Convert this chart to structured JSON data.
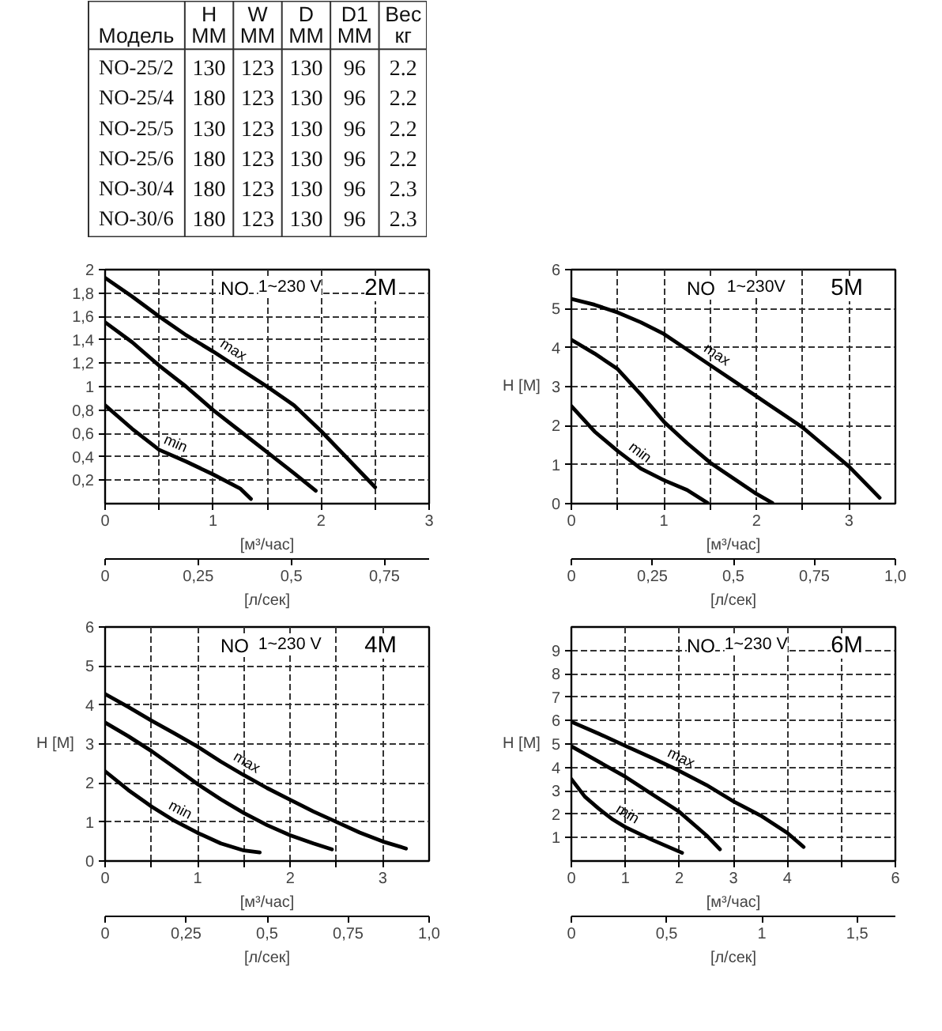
{
  "chart_data": [
    {
      "type": "heatmap",
      "ylabel": "Модель",
      "categories": [
        "H ММ",
        "W ММ",
        "D ММ",
        "D1 ММ",
        "Вес кг"
      ],
      "y_categories": [
        "NO-25/2",
        "NO-25/4",
        "NO-25/5",
        "NO-25/6",
        "NO-30/4",
        "NO-30/6"
      ],
      "cells": [
        [
          130,
          123,
          130,
          96,
          2.2
        ],
        [
          180,
          123,
          130,
          96,
          2.2
        ],
        [
          130,
          123,
          130,
          96,
          2.2
        ],
        [
          180,
          123,
          130,
          96,
          2.2
        ],
        [
          180,
          123,
          130,
          96,
          2.3
        ],
        [
          180,
          123,
          130,
          96,
          2.3
        ]
      ],
      "data_labels": true
    },
    {
      "type": "line",
      "title": "2M",
      "annotations": [
        "NO",
        "1~230 V"
      ],
      "xlabel": "[м³/час]",
      "x2label": "[л/сек]",
      "xlim": [
        0,
        3
      ],
      "xticks": [
        0,
        {
          "value": 0.5,
          "label": null
        },
        1,
        {
          "value": 1.5,
          "label": null
        },
        2,
        {
          "value": 2.5,
          "label": null
        },
        3
      ],
      "x2lim": [
        0,
        0.87
      ],
      "x2ticks": [
        0,
        {
          "value": 0.25,
          "label": "0,25"
        },
        {
          "value": 0.5,
          "label": "0,5"
        },
        {
          "value": 0.75,
          "label": "0,75"
        }
      ],
      "ylim": [
        0,
        2
      ],
      "yticks": [
        {
          "value": 0.2,
          "label": "0,2"
        },
        {
          "value": 0.4,
          "label": "0,4"
        },
        {
          "value": 0.6,
          "label": "0,6"
        },
        {
          "value": 0.8,
          "label": "0,8"
        },
        1,
        {
          "value": 1.2,
          "label": "1,2"
        },
        {
          "value": 1.4,
          "label": "1,4"
        },
        {
          "value": 1.6,
          "label": "1,6"
        },
        {
          "value": 1.8,
          "label": "1,8"
        },
        2
      ],
      "grid": true,
      "series": [
        {
          "name": "max",
          "color": "#000000",
          "x": [
            0,
            0.25,
            0.5,
            0.75,
            1,
            1.25,
            1.5,
            1.75,
            2,
            2.25,
            2.5
          ],
          "values": [
            1.93,
            1.77,
            1.6,
            1.44,
            1.3,
            1.15,
            1.0,
            0.84,
            0.62,
            0.38,
            0.14
          ]
        },
        {
          "color": "#000000",
          "x": [
            0,
            0.25,
            0.5,
            0.75,
            1,
            1.25,
            1.5,
            1.75,
            1.95
          ],
          "values": [
            1.55,
            1.38,
            1.18,
            1.0,
            0.8,
            0.62,
            0.44,
            0.26,
            0.11
          ]
        },
        {
          "name": "min",
          "color": "#000000",
          "x": [
            0,
            0.25,
            0.5,
            0.75,
            1,
            1.25,
            1.35
          ],
          "values": [
            0.84,
            0.64,
            0.46,
            0.36,
            0.25,
            0.13,
            0.04
          ]
        }
      ]
    },
    {
      "type": "line",
      "title": "5M",
      "annotations": [
        "NO",
        "1~230V"
      ],
      "xlabel": "[м³/час]",
      "x2label": "[л/сек]",
      "ylabel": "H [М]",
      "xlim": [
        0,
        3.5
      ],
      "xticks": [
        0,
        {
          "value": 0.5,
          "label": null
        },
        1,
        {
          "value": 1.5,
          "label": null
        },
        2,
        {
          "value": 2.5,
          "label": null
        },
        3
      ],
      "x2lim": [
        0,
        1
      ],
      "x2ticks": [
        0,
        {
          "value": 0.25,
          "label": "0,25"
        },
        {
          "value": 0.5,
          "label": "0,5"
        },
        {
          "value": 0.75,
          "label": "0,75"
        },
        {
          "value": 1,
          "label": "1,0"
        }
      ],
      "ylim": [
        0,
        6
      ],
      "yticks": [
        0,
        1,
        2,
        3,
        4,
        5,
        6
      ],
      "grid": true,
      "series": [
        {
          "name": "max",
          "color": "#000000",
          "x": [
            0,
            0.25,
            0.5,
            0.75,
            1,
            1.25,
            1.5,
            1.75,
            2,
            2.25,
            2.5,
            2.75,
            3,
            3.33
          ],
          "values": [
            5.25,
            5.1,
            4.9,
            4.65,
            4.35,
            3.95,
            3.55,
            3.15,
            2.75,
            2.35,
            1.95,
            1.45,
            0.95,
            0.15
          ]
        },
        {
          "color": "#000000",
          "x": [
            0,
            0.25,
            0.5,
            0.75,
            1,
            1.25,
            1.5,
            1.75,
            2,
            2.17
          ],
          "values": [
            4.2,
            3.85,
            3.45,
            2.8,
            2.1,
            1.55,
            1.05,
            0.65,
            0.25,
            0.02
          ]
        },
        {
          "name": "min",
          "color": "#000000",
          "x": [
            0,
            0.25,
            0.5,
            0.75,
            1,
            1.25,
            1.47
          ],
          "values": [
            2.5,
            1.85,
            1.35,
            0.9,
            0.6,
            0.35,
            0.02
          ]
        }
      ]
    },
    {
      "type": "line",
      "title": "4M",
      "annotations": [
        "NO",
        "1~230 V"
      ],
      "xlabel": "[м³/час]",
      "x2label": "[л/сек]",
      "ylabel": "H [М]",
      "xlim": [
        0,
        3.5
      ],
      "xticks": [
        0,
        {
          "value": 0.5,
          "label": null
        },
        1,
        {
          "value": 1.5,
          "label": null
        },
        2,
        {
          "value": 2.5,
          "label": null
        },
        3
      ],
      "x2lim": [
        0,
        1
      ],
      "x2ticks": [
        0,
        {
          "value": 0.25,
          "label": "0,25"
        },
        {
          "value": 0.5,
          "label": "0,5"
        },
        {
          "value": 0.75,
          "label": "0,75"
        },
        {
          "value": 1,
          "label": "1,0"
        }
      ],
      "ylim": [
        0,
        6
      ],
      "yticks": [
        0,
        1,
        2,
        3,
        4,
        5,
        6
      ],
      "grid": true,
      "series": [
        {
          "name": "max",
          "color": "#000000",
          "x": [
            0,
            0.25,
            0.5,
            0.75,
            1,
            1.25,
            1.5,
            1.75,
            2,
            2.25,
            2.5,
            2.75,
            3,
            3.25
          ],
          "values": [
            4.28,
            3.95,
            3.6,
            3.27,
            2.93,
            2.55,
            2.2,
            1.87,
            1.57,
            1.27,
            1.0,
            0.73,
            0.5,
            0.32
          ]
        },
        {
          "color": "#000000",
          "x": [
            0,
            0.25,
            0.5,
            0.75,
            1,
            1.25,
            1.5,
            1.75,
            2,
            2.25,
            2.45
          ],
          "values": [
            3.55,
            3.2,
            2.82,
            2.4,
            1.97,
            1.58,
            1.23,
            0.92,
            0.66,
            0.45,
            0.3
          ]
        },
        {
          "name": "min",
          "color": "#000000",
          "x": [
            0,
            0.25,
            0.5,
            0.75,
            1,
            1.25,
            1.5,
            1.67
          ],
          "values": [
            2.3,
            1.82,
            1.4,
            1.03,
            0.72,
            0.45,
            0.27,
            0.22
          ]
        }
      ]
    },
    {
      "type": "line",
      "title": "6M",
      "annotations": [
        "NO",
        "1~230 V"
      ],
      "xlabel": "[м³/час]",
      "x2label": "[л/сек]",
      "ylabel": "H [М]",
      "xlim": [
        0,
        6
      ],
      "xticks": [
        0,
        1,
        2,
        3,
        4,
        {
          "value": 5,
          "label": null
        },
        6
      ],
      "x2lim": [
        0,
        1.7
      ],
      "x2ticks": [
        0,
        {
          "value": 0.5,
          "label": "0,5"
        },
        1,
        {
          "value": 1.5,
          "label": "1,5"
        }
      ],
      "ylim": [
        0,
        10
      ],
      "yticks": [
        1,
        2,
        3,
        4,
        5,
        6,
        7,
        8,
        9
      ],
      "grid": true,
      "series": [
        {
          "name": "max",
          "color": "#000000",
          "x": [
            0,
            0.5,
            1,
            1.5,
            2,
            2.5,
            3,
            3.5,
            4,
            4.3
          ],
          "values": [
            5.95,
            5.45,
            4.92,
            4.4,
            3.85,
            3.25,
            2.55,
            1.95,
            1.2,
            0.6
          ]
        },
        {
          "color": "#000000",
          "x": [
            0,
            0.5,
            1,
            1.5,
            2,
            2.5,
            2.75
          ],
          "values": [
            4.9,
            4.25,
            3.6,
            2.85,
            2.1,
            1.1,
            0.5
          ]
        },
        {
          "name": "min",
          "color": "#000000",
          "x": [
            0,
            0.25,
            0.5,
            0.75,
            1,
            1.5,
            2.05
          ],
          "values": [
            3.5,
            2.75,
            2.25,
            1.8,
            1.45,
            0.9,
            0.35
          ]
        }
      ]
    }
  ]
}
